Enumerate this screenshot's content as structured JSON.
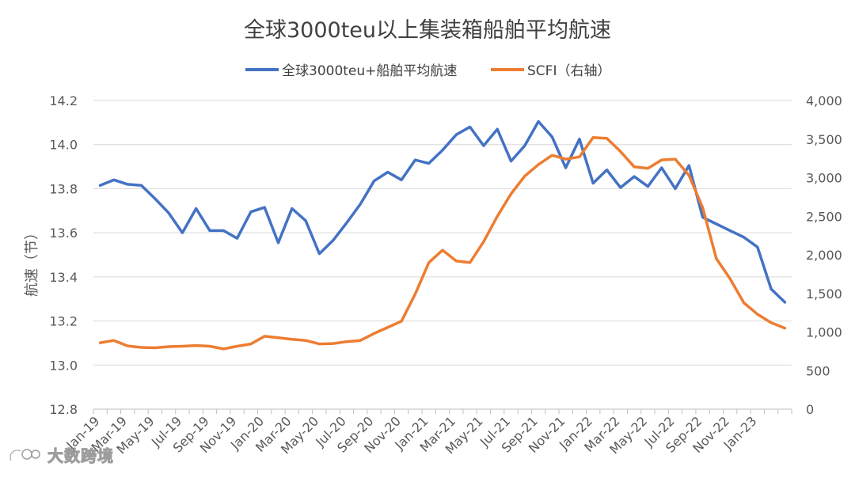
{
  "chart_data": {
    "type": "line",
    "title": "全球3000teu以上集装箱船舶平均航速",
    "ylabel": "航速（节）",
    "y2label": "",
    "xlabel": "",
    "legend_position": "top-center",
    "grid": true,
    "ylim": [
      12.8,
      14.2
    ],
    "y2lim": [
      0,
      4000
    ],
    "y_ticks": [
      "12.8",
      "13.0",
      "13.2",
      "13.4",
      "13.6",
      "13.8",
      "14.0",
      "14.2"
    ],
    "y2_ticks": [
      "0",
      "500",
      "1,000",
      "1,500",
      "2,000",
      "2,500",
      "3,000",
      "3,500",
      "4,000"
    ],
    "x_tick_labels": [
      "Jan-19",
      "Mar-19",
      "May-19",
      "Jul-19",
      "Sep-19",
      "Nov-19",
      "Jan-20",
      "Mar-20",
      "May-20",
      "Jul-20",
      "Sep-20",
      "Nov-20",
      "Jan-21",
      "Mar-21",
      "May-21",
      "Jul-21",
      "Sep-21",
      "Nov-21",
      "Jan-22",
      "Mar-22",
      "May-22",
      "Jul-22",
      "Sep-22",
      "Nov-22",
      "Jan-23"
    ],
    "series": [
      {
        "name": "全球3000teu+船舶平均航速",
        "axis": "left",
        "color": "#4472C4",
        "x": [
          0,
          1,
          2,
          3,
          4,
          5,
          6,
          7,
          8,
          9,
          10,
          11,
          12,
          13,
          14,
          15,
          16,
          17,
          18,
          19,
          20,
          21,
          22,
          23,
          24,
          25,
          26,
          27,
          28,
          29,
          30,
          31,
          32,
          33,
          34,
          35,
          36,
          37,
          38,
          39,
          40,
          41,
          42,
          43,
          44,
          45,
          46,
          47,
          48,
          49,
          50
        ],
        "values": [
          13.815,
          13.84,
          13.82,
          13.815,
          13.755,
          13.69,
          13.6,
          13.71,
          13.61,
          13.61,
          13.575,
          13.695,
          13.715,
          13.555,
          13.71,
          13.655,
          13.505,
          13.565,
          13.645,
          13.73,
          13.835,
          13.875,
          13.84,
          13.93,
          13.915,
          13.975,
          14.045,
          14.08,
          13.995,
          14.07,
          13.925,
          13.995,
          14.105,
          14.035,
          13.895,
          14.025,
          13.825,
          13.885,
          13.805,
          13.855,
          13.81,
          13.895,
          13.8,
          13.905,
          13.67,
          13.64,
          13.61,
          13.58,
          13.535,
          13.345,
          13.285
        ]
      },
      {
        "name": "SCFI（右轴）",
        "axis": "right",
        "color": "#ED7D31",
        "x": [
          0,
          1,
          2,
          3,
          4,
          5,
          6,
          7,
          8,
          9,
          10,
          11,
          12,
          13,
          14,
          15,
          16,
          17,
          18,
          19,
          20,
          21,
          22,
          23,
          24,
          25,
          26,
          27,
          28,
          29,
          30,
          31,
          32,
          33,
          34,
          35,
          36,
          37,
          38,
          39,
          40,
          41,
          42,
          43,
          44,
          45,
          46,
          47,
          48,
          49,
          50
        ],
        "values": [
          860,
          890,
          820,
          800,
          795,
          810,
          815,
          825,
          815,
          780,
          815,
          845,
          945,
          925,
          905,
          890,
          845,
          850,
          875,
          890,
          980,
          1060,
          1140,
          1490,
          1900,
          2060,
          1920,
          1900,
          2170,
          2500,
          2790,
          3020,
          3170,
          3290,
          3240,
          3270,
          3520,
          3510,
          3340,
          3140,
          3120,
          3230,
          3240,
          3030,
          2610,
          1950,
          1690,
          1380,
          1230,
          1120,
          1050
        ]
      }
    ]
  },
  "watermark": {
    "text": "大数跨境",
    "logo": "dsb-logo-icon"
  }
}
